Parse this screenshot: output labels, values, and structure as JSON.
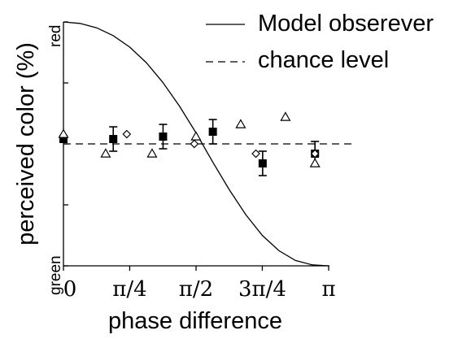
{
  "chart_data": {
    "type": "scatter",
    "xlabel": "phase difference",
    "ylabel": "perceived color (%)",
    "y_top_label": "red",
    "y_bottom_label": "green",
    "x_ticks": [
      {
        "value": 0,
        "label": "0"
      },
      {
        "value": 0.785,
        "label": "π/4"
      },
      {
        "value": 1.571,
        "label": "π/2"
      },
      {
        "value": 2.356,
        "label": "3π/4"
      },
      {
        "value": 3.142,
        "label": "π"
      }
    ],
    "y_ticks": [
      0,
      25,
      50,
      75,
      100
    ],
    "xlim": [
      0,
      3.142
    ],
    "ylim": [
      0,
      100
    ],
    "legend": {
      "position": "top-right",
      "entries": [
        {
          "label": "Model obserever",
          "style": "solid"
        },
        {
          "label": "chance level",
          "style": "dashed"
        }
      ]
    },
    "model_curve": {
      "x": [
        0,
        0.196,
        0.393,
        0.589,
        0.785,
        0.982,
        1.178,
        1.374,
        1.571,
        1.767,
        1.963,
        2.16,
        2.356,
        2.553,
        2.749,
        2.945,
        3.142
      ],
      "y": [
        100,
        99.4,
        97.6,
        94.4,
        89.7,
        83.3,
        75.2,
        65.5,
        54.5,
        42.7,
        31.3,
        21.0,
        12.5,
        6.2,
        2.2,
        0.4,
        0
      ]
    },
    "chance_level": 50,
    "series": [
      {
        "marker": "filled-square",
        "x": [
          0,
          0.59,
          1.18,
          1.77,
          2.36,
          2.98
        ],
        "y": [
          52,
          52,
          53,
          55,
          42,
          46
        ],
        "error": [
          0,
          5,
          5,
          5,
          5,
          5
        ]
      },
      {
        "marker": "open-triangle",
        "x": [
          0,
          0.5,
          1.05,
          1.57,
          2.1,
          2.63,
          2.98
        ],
        "y": [
          54,
          46,
          46,
          53,
          58,
          61,
          42
        ]
      },
      {
        "marker": "open-diamond",
        "x": [
          0.75,
          1.55,
          2.28,
          2.98
        ],
        "y": [
          54,
          50,
          46,
          46
        ]
      }
    ]
  }
}
